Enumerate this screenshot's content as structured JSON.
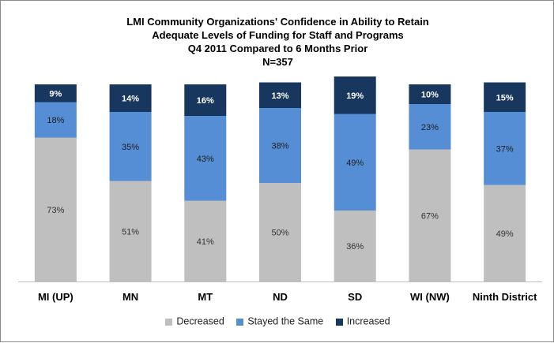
{
  "chart_data": {
    "type": "bar",
    "stacked": true,
    "percent_stacked": true,
    "title_lines": [
      "LMI Community Organizations'  Confidence in Ability to Retain",
      "Adequate Levels of Funding for Staff and Programs",
      "Q4 2011 Compared to 6 Months Prior",
      "N=357"
    ],
    "xlabel": "",
    "ylabel": "",
    "ylim": [
      0,
      100
    ],
    "grid": false,
    "legend_position": "bottom",
    "categories": [
      "MI (UP)",
      "MN",
      "MT",
      "ND",
      "SD",
      "WI (NW)",
      "Ninth District"
    ],
    "series": [
      {
        "name": "Decreased",
        "color": "#bfbfbf",
        "label_color": "#333333",
        "label_bold": false,
        "values": [
          73,
          51,
          41,
          50,
          36,
          67,
          49
        ]
      },
      {
        "name": "Stayed the Same",
        "color": "#558ed5",
        "label_color": "#1f1f1f",
        "label_bold": false,
        "values": [
          18,
          35,
          43,
          38,
          49,
          23,
          37
        ]
      },
      {
        "name": "Increased",
        "color": "#17375e",
        "label_color": "#ffffff",
        "label_bold": true,
        "values": [
          9,
          14,
          16,
          13,
          19,
          10,
          15
        ]
      }
    ],
    "data_labels": [
      [
        "73%",
        "51%",
        "41%",
        "50%",
        "36%",
        "67%",
        "49%"
      ],
      [
        "18%",
        "35%",
        "43%",
        "38%",
        "49%",
        "23%",
        "37%"
      ],
      [
        "9%",
        "14%",
        "16%",
        "13%",
        "19%",
        "10%",
        "15%"
      ]
    ]
  }
}
